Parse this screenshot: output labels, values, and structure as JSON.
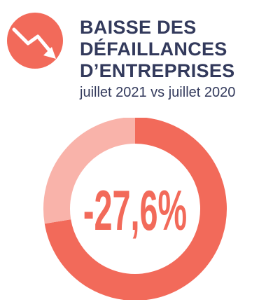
{
  "header": {
    "icon": "trend-down-icon",
    "title_lines": [
      "BAISSE DES",
      "DÉFAILLANCES",
      "D’ENTREPRISES"
    ],
    "subtitle": "juillet 2021 vs juillet 2020"
  },
  "colors": {
    "accent": "#f26a5a",
    "donut_main": "#f26a5a",
    "donut_remainder": "#f9b3aa",
    "title": "#333a5c",
    "icon_arrow": "#ffffff"
  },
  "chart_data": {
    "type": "pie",
    "style": "donut",
    "value": -27.6,
    "unit": "%",
    "center_label": "-27,6%",
    "slices": [
      {
        "label": "",
        "value": 72.4
      },
      {
        "label": "",
        "value": 27.6
      }
    ]
  }
}
